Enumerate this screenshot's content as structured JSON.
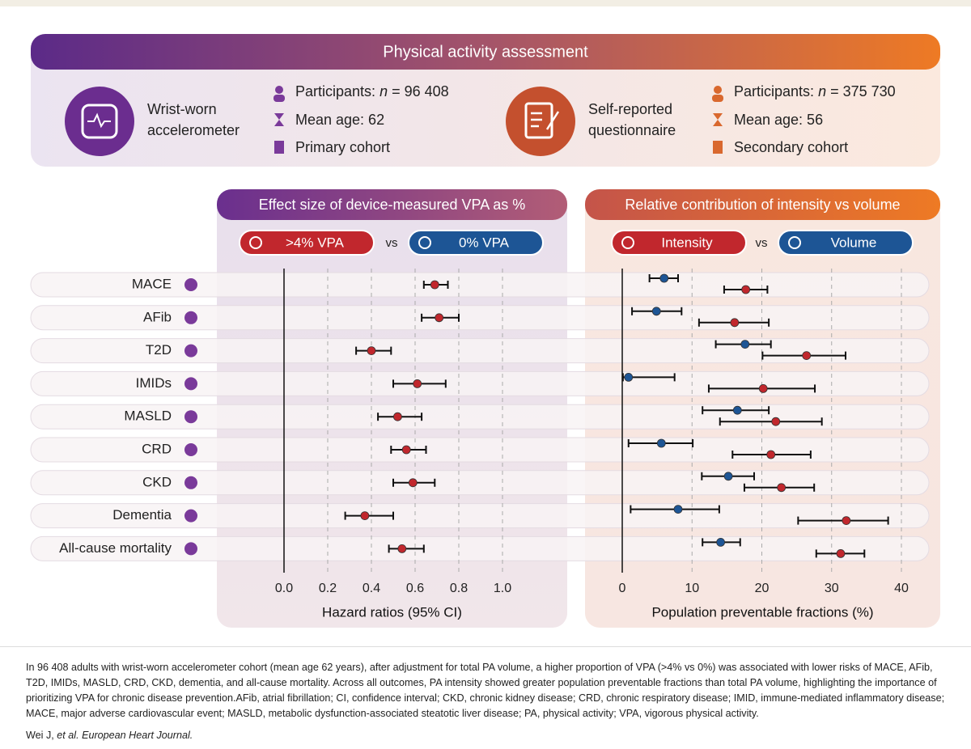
{
  "header": {
    "title": "Physical activity assessment",
    "cohorts": [
      {
        "label": [
          "Wrist-worn",
          "accelerometer"
        ],
        "participants": {
          "label": "Participants:",
          "n": "n",
          "value": "= 96 408"
        },
        "mean_age": "Mean age: 62",
        "cohort": "Primary cohort"
      },
      {
        "label": [
          "Self-reported",
          "questionnaire"
        ],
        "participants": {
          "label": "Participants:",
          "n": "n",
          "value": "= 375 730"
        },
        "mean_age": "Mean age: 56",
        "cohort": "Secondary cohort"
      }
    ]
  },
  "chart_data": [
    {
      "type": "forest",
      "title": "Effect size of device-measured VPA as %",
      "xlabel": "Hazard ratios (95% CI)",
      "categories": [
        "MACE",
        "AFib",
        "T2D",
        "IMIDs",
        "MASLD",
        "CRD",
        "CKD",
        "Dementia",
        "All-cause mortality"
      ],
      "xlim": [
        0,
        1
      ],
      "xticks": [
        {
          "value": 0,
          "label": "0.0"
        },
        0.2,
        0.4,
        0.6,
        0.8,
        {
          "value": 1,
          "label": "1.0"
        }
      ],
      "grid": true,
      "vs": "vs",
      "reference": {
        "name": "0% VPA",
        "color": "#1d5595"
      },
      "series": [
        {
          "name": ">4% VPA",
          "color": "#c1272d",
          "values": [
            0.69,
            0.71,
            0.4,
            0.61,
            0.52,
            0.56,
            0.59,
            0.37,
            0.54
          ],
          "lower": [
            0.64,
            0.63,
            0.33,
            0.5,
            0.43,
            0.49,
            0.5,
            0.28,
            0.48
          ],
          "upper": [
            0.75,
            0.8,
            0.49,
            0.74,
            0.63,
            0.65,
            0.69,
            0.5,
            0.64
          ]
        }
      ]
    },
    {
      "type": "forest",
      "title": "Relative contribution of intensity vs volume",
      "xlabel": "Population preventable fractions (%)",
      "xlim": [
        0,
        40
      ],
      "xticks": [
        0,
        10,
        20,
        30,
        40
      ],
      "grid": true,
      "vs": "vs",
      "series": [
        {
          "name": "Intensity",
          "color": "#c1272d",
          "values": [
            17.7,
            16.1,
            26.4,
            20.2,
            22.0,
            21.3,
            22.8,
            32.1,
            31.3
          ],
          "lower": [
            14.6,
            11.0,
            20.1,
            12.4,
            14.0,
            15.8,
            17.5,
            25.2,
            27.8
          ],
          "upper": [
            20.8,
            21.0,
            32.0,
            27.6,
            28.6,
            27.0,
            27.5,
            38.1,
            34.7
          ]
        },
        {
          "name": "Volume",
          "color": "#1d5595",
          "values": [
            6.0,
            4.9,
            17.6,
            0.9,
            16.5,
            5.6,
            15.2,
            8.0,
            14.1
          ],
          "lower": [
            3.9,
            1.4,
            13.4,
            0.1,
            11.5,
            0.9,
            11.4,
            1.2,
            11.5
          ],
          "upper": [
            8.0,
            8.5,
            21.3,
            7.5,
            21.0,
            10.1,
            18.9,
            13.9,
            16.9
          ]
        }
      ]
    }
  ],
  "caption": "In 96 408 adults with wrist-worn accelerometer cohort (mean age 62 years), after adjustment for total PA volume, a higher proportion of VPA (>4% vs 0%) was associated with lower risks of MACE, AFib, T2D, IMIDs, MASLD, CRD, CKD, dementia, and all-cause mortality. Across all outcomes, PA intensity showed greater population preventable fractions than total PA volume, highlighting the importance of prioritizing VPA for chronic disease prevention.AFib, atrial fibrillation; CI, confidence interval; CKD, chronic kidney disease; CRD, chronic respiratory disease; IMID, immune-mediated inflammatory disease; MACE, major adverse cardiovascular event; MASLD, metabolic dysfunction-associated steatotic liver disease; PA, physical activity; VPA, vigorous physical activity.",
  "citation": {
    "author": "Wei J,",
    "journal": "et al. European Heart Journal."
  }
}
